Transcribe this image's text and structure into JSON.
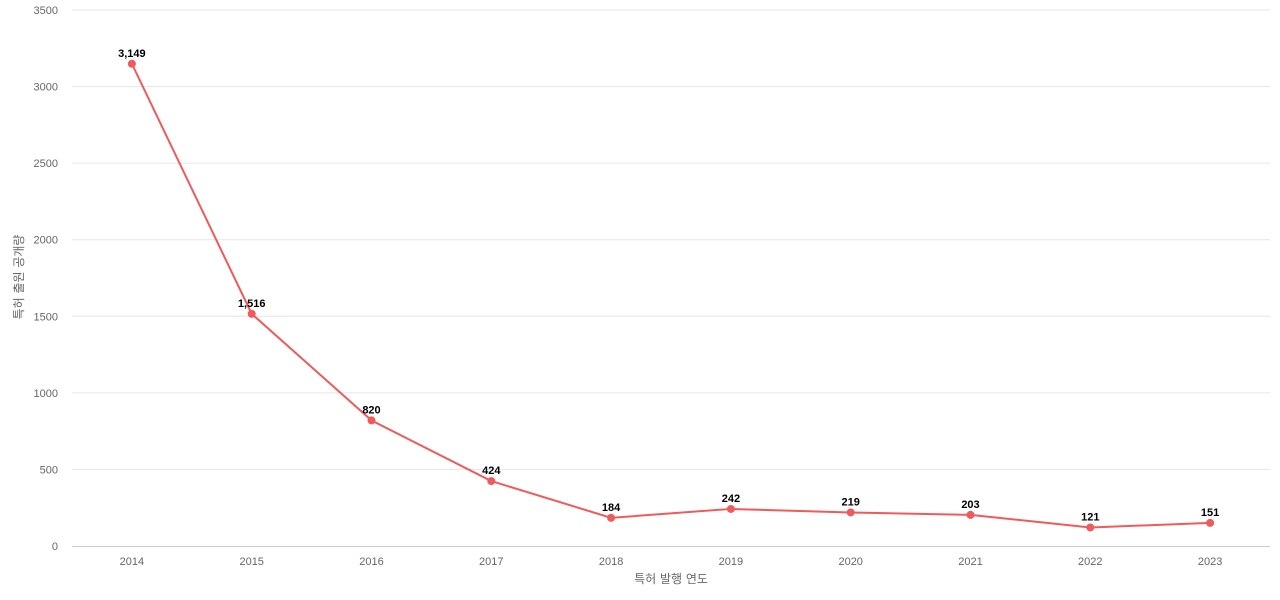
{
  "chart_data": {
    "type": "line",
    "title": "",
    "xlabel": "특허 발행 연도",
    "ylabel": "특허 출원 공개량",
    "categories": [
      "2014",
      "2015",
      "2016",
      "2017",
      "2018",
      "2019",
      "2020",
      "2021",
      "2022",
      "2023"
    ],
    "series": [
      {
        "values": [
          3149,
          1516,
          820,
          424,
          184,
          242,
          219,
          203,
          121,
          151
        ],
        "labels": [
          "3,149",
          "1,516",
          "820",
          "424",
          "184",
          "242",
          "219",
          "203",
          "121",
          "151"
        ],
        "color": "#f05a5a"
      }
    ],
    "ylim": [
      0,
      3500
    ],
    "yticks": [
      "0",
      "500",
      "1000",
      "1500",
      "2000",
      "2500",
      "3000",
      "3500"
    ],
    "grid": true,
    "legend": "none"
  }
}
